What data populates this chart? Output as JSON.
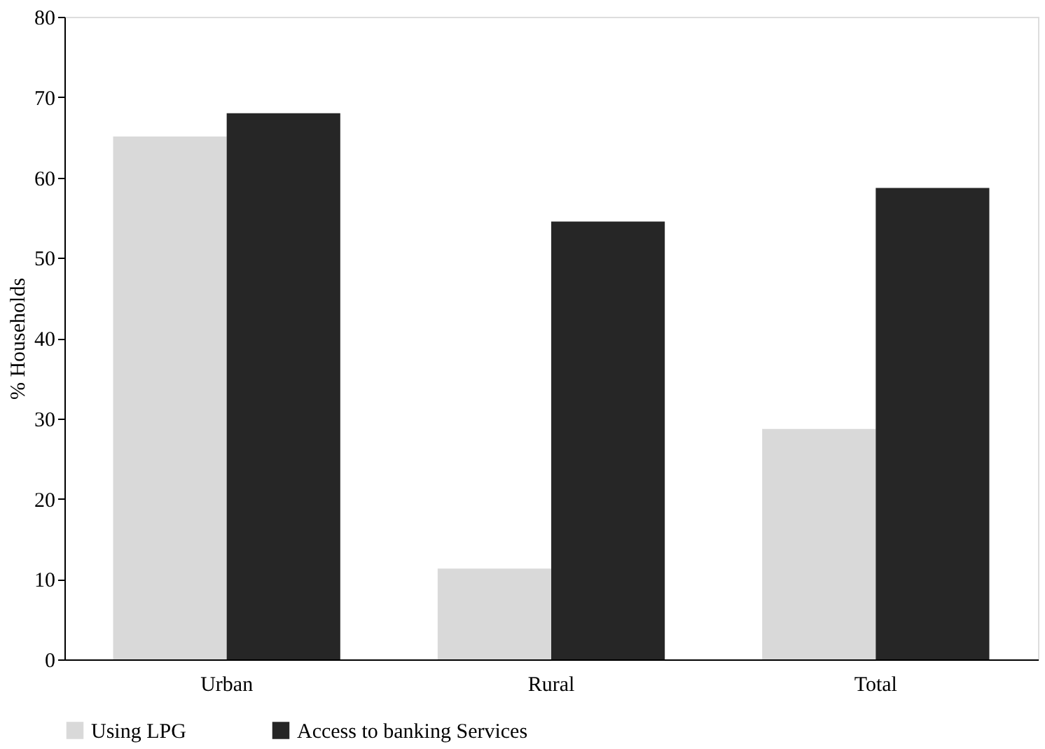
{
  "chart_data": {
    "type": "bar",
    "ylabel": "% Households",
    "categories": [
      "Urban",
      "Rural",
      "Total"
    ],
    "series": [
      {
        "name": "Using LPG",
        "color": "#d9d9d9",
        "values": [
          65.1,
          11.3,
          28.7
        ]
      },
      {
        "name": "Access to banking Services",
        "color": "#262626",
        "values": [
          68.0,
          54.5,
          58.7
        ]
      }
    ],
    "ylim": [
      0,
      80
    ],
    "yticks": [
      0,
      10,
      20,
      30,
      40,
      50,
      60,
      70,
      80
    ],
    "grid": false,
    "legend": "bottom"
  }
}
